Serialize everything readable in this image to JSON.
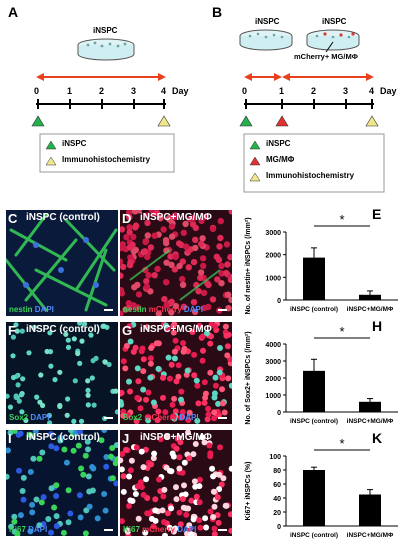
{
  "panel_a": {
    "letter": "A",
    "dish_label": "iNSPC",
    "ticks": [
      "0",
      "1",
      "2",
      "3",
      "4"
    ],
    "day_label": "Day",
    "legend": [
      {
        "marker": "green-triangle",
        "color": "#22b14c",
        "text": "iNSPC"
      },
      {
        "marker": "yellow-triangle",
        "color": "#f0e68c",
        "text": "Immunohistochemistry"
      }
    ]
  },
  "panel_b": {
    "letter": "B",
    "dish1_label": "iNSPC",
    "dish2_label": "iNSPC",
    "add_label": "mCherry+ MG/MΦ",
    "ticks": [
      "0",
      "1",
      "2",
      "3",
      "4"
    ],
    "day_label": "Day",
    "legend": [
      {
        "marker": "green-triangle",
        "color": "#22b14c",
        "text": "iNSPC"
      },
      {
        "marker": "red-triangle",
        "color": "#e03030",
        "text": "MG/MΦ"
      },
      {
        "marker": "yellow-triangle",
        "color": "#f0e68c",
        "text": "Immunohistochemistry"
      }
    ]
  },
  "micrographs": [
    {
      "letter": "C",
      "title": "iNSPC (control)",
      "stain": [
        {
          "t": "nestin",
          "c": "#3ad35a"
        },
        {
          "t": " DAPI",
          "c": "#4f8cff"
        }
      ]
    },
    {
      "letter": "D",
      "title": "iNSPC+MG/MΦ",
      "stain": [
        {
          "t": "nestin",
          "c": "#3ad35a"
        },
        {
          "t": " mCherry",
          "c": "#ff3355"
        },
        {
          "t": " DAPI",
          "c": "#4f8cff"
        }
      ]
    },
    {
      "letter": "F",
      "title": "iNSPC (control)",
      "stain": [
        {
          "t": "Sox2",
          "c": "#3ad35a"
        },
        {
          "t": " DAPI",
          "c": "#4f8cff"
        }
      ]
    },
    {
      "letter": "G",
      "title": "iNSPC+MG/MΦ",
      "stain": [
        {
          "t": "Sox2",
          "c": "#3ad35a"
        },
        {
          "t": " mCherry",
          "c": "#ff3355"
        },
        {
          "t": " DAPI",
          "c": "#4f8cff"
        }
      ]
    },
    {
      "letter": "I",
      "title": "iNSPC (control)",
      "stain": [
        {
          "t": "Ki67",
          "c": "#3ad35a"
        },
        {
          "t": " DAPI",
          "c": "#4f8cff"
        }
      ]
    },
    {
      "letter": "J",
      "title": "iNSPC+MG/MΦ",
      "stain": [
        {
          "t": "Ki67",
          "c": "#3ad35a"
        },
        {
          "t": " mCherry",
          "c": "#ff3355"
        },
        {
          "t": " DAPI",
          "c": "#4f8cff"
        }
      ]
    }
  ],
  "chart_data": [
    {
      "panel": "E",
      "type": "bar",
      "categories": [
        "iNSPC (control)",
        "iNSPC+MG/MΦ"
      ],
      "values": [
        1870,
        230
      ],
      "errors": [
        430,
        170
      ],
      "ylabel": "No. of nestin+ iNSPCs (/mm²)",
      "ylim": [
        0,
        3000
      ],
      "yticks": [
        "0",
        "1000",
        "2000",
        "3000"
      ],
      "significance": "*"
    },
    {
      "panel": "H",
      "type": "bar",
      "categories": [
        "iNSPC (control)",
        "iNSPC+MG/MΦ"
      ],
      "values": [
        2420,
        600
      ],
      "errors": [
        680,
        190
      ],
      "ylabel": "No. of Sox2+ iNSPCs (/mm²)",
      "ylim": [
        0,
        4000
      ],
      "yticks": [
        "0",
        "1000",
        "2000",
        "3000",
        "4000"
      ],
      "significance": "*"
    },
    {
      "panel": "K",
      "type": "bar",
      "categories": [
        "iNSPC (control)",
        "iNSPC+MG/MΦ"
      ],
      "values": [
        80,
        45
      ],
      "errors": [
        4,
        7
      ],
      "ylabel": "Ki67+ iNSPCs (%)",
      "ylim": [
        0,
        100
      ],
      "yticks": [
        "0",
        "20",
        "40",
        "60",
        "80",
        "100"
      ],
      "significance": "*"
    }
  ]
}
